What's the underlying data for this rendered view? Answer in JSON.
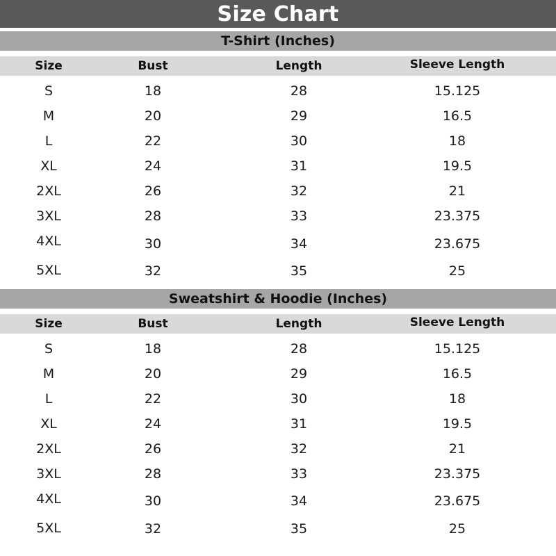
{
  "title": "Size Chart",
  "sections": [
    {
      "heading": "T-Shirt (Inches)",
      "columns": [
        "Size",
        "Bust",
        "Length",
        "Sleeve Length"
      ],
      "rows": [
        [
          "S",
          "18",
          "28",
          "15.125"
        ],
        [
          "M",
          "20",
          "29",
          "16.5"
        ],
        [
          "L",
          "22",
          "30",
          "18"
        ],
        [
          "XL",
          "24",
          "31",
          "19.5"
        ],
        [
          "2XL",
          "26",
          "32",
          "21"
        ],
        [
          "3XL",
          "28",
          "33",
          "23.375"
        ],
        [
          "4XL",
          "30",
          "34",
          "23.675"
        ],
        [
          "5XL",
          "32",
          "35",
          "25"
        ]
      ]
    },
    {
      "heading": "Sweatshirt & Hoodie (Inches)",
      "columns": [
        "Size",
        "Bust",
        "Length",
        "Sleeve Length"
      ],
      "rows": [
        [
          "S",
          "18",
          "28",
          "15.125"
        ],
        [
          "M",
          "20",
          "29",
          "16.5"
        ],
        [
          "L",
          "22",
          "30",
          "18"
        ],
        [
          "XL",
          "24",
          "31",
          "19.5"
        ],
        [
          "2XL",
          "26",
          "32",
          "21"
        ],
        [
          "3XL",
          "28",
          "33",
          "23.375"
        ],
        [
          "4XL",
          "30",
          "34",
          "23.675"
        ],
        [
          "5XL",
          "32",
          "35",
          "25"
        ]
      ]
    }
  ]
}
